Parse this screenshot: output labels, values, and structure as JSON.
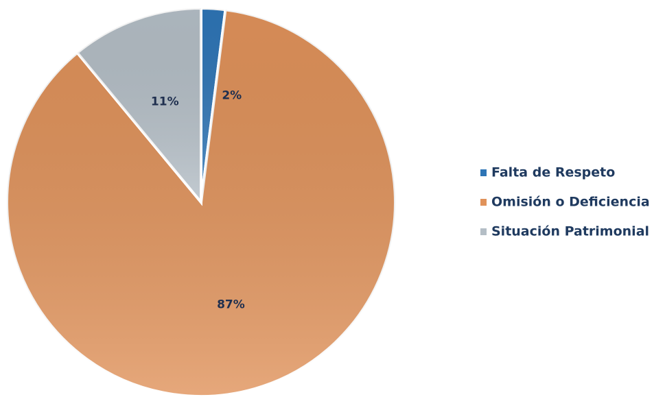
{
  "chart_data": {
    "type": "pie",
    "categories": [
      "Falta de Respeto",
      "Omisión o Deficiencia",
      "Situación Patrimonial"
    ],
    "values": [
      2,
      87,
      11
    ],
    "value_labels": [
      "2%",
      "87%",
      "11%"
    ],
    "colors": [
      "#2e75b6",
      "#e0925a",
      "#b4bec6"
    ],
    "legend": "right"
  }
}
